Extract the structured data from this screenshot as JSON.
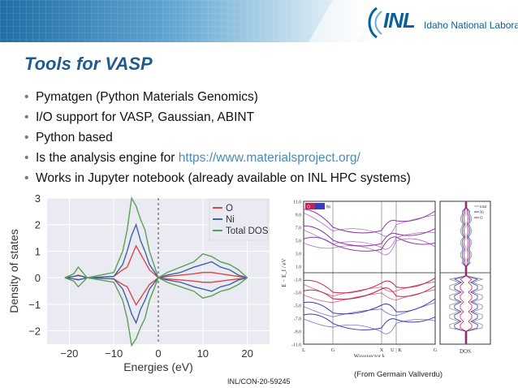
{
  "slide": {
    "title": "Tools for VASP",
    "bullets": [
      {
        "text": "Pymatgen (Python Materials Genomics)"
      },
      {
        "text": "I/O support for VASP, Gaussian, ABINT"
      },
      {
        "text": "Python based"
      },
      {
        "text": "Is the analysis engine for ",
        "link": "https://www.materialsproject.org/"
      },
      {
        "text": "Works in Jupyter notebook (already available on INL HPC systems)"
      }
    ],
    "caption": "(From Germain Vallverdu)",
    "footer": "INL/CON-20-59245",
    "logo": {
      "mark": "INL",
      "text": "Idaho National Laboratory"
    }
  },
  "colors": {
    "title": "#1f5b8f",
    "link": "#4a8ab8",
    "O": "#d94a48",
    "Ni": "#3a64a8",
    "Total": "#5aa055",
    "band_red": "#c8204f",
    "band_blue": "#3b3bbb",
    "band_purple": "#8d3aa8"
  },
  "chart_data": [
    {
      "type": "line",
      "xlabel": "Energies (eV)",
      "ylabel": "Density of states",
      "xlim": [
        -25,
        25
      ],
      "ylim": [
        -2.5,
        3
      ],
      "xticks": [
        "−20",
        "−10",
        "0",
        "10",
        "20"
      ],
      "yticks": [
        "3",
        "2",
        "1",
        "0",
        "−1",
        "−2"
      ],
      "legend_position": "top-right",
      "grid": true,
      "series": [
        {
          "name": "O",
          "x": [
            -21,
            -19,
            -18,
            -17,
            -16,
            -10,
            -8,
            -7,
            -6,
            -5,
            -4,
            -3,
            -2,
            0,
            2,
            5,
            8,
            10,
            12,
            14,
            16,
            18,
            20
          ],
          "values": [
            0,
            0.05,
            0.1,
            0.05,
            0,
            0.05,
            0.3,
            0.4,
            0.8,
            1.2,
            0.9,
            0.6,
            0.3,
            0,
            0.05,
            0.1,
            0.15,
            0.2,
            0.2,
            0.15,
            0.1,
            0.05,
            0
          ]
        },
        {
          "name": "Ni",
          "x": [
            -21,
            -19,
            -18,
            -17,
            -16,
            -10,
            -8,
            -7,
            -6,
            -5,
            -4,
            -3,
            -2,
            0,
            2,
            5,
            8,
            10,
            12,
            14,
            16,
            18,
            20
          ],
          "values": [
            0,
            0.05,
            0.08,
            0.05,
            0,
            0.05,
            0.5,
            1.0,
            1.6,
            2.0,
            1.4,
            1.0,
            0.5,
            0,
            0.1,
            0.2,
            0.4,
            0.5,
            0.6,
            0.4,
            0.3,
            0.1,
            0
          ]
        },
        {
          "name": "Total DOS",
          "x": [
            -21,
            -19,
            -18,
            -17,
            -16,
            -10,
            -8,
            -7,
            -6,
            -5,
            -4,
            -3,
            -2,
            0,
            2,
            5,
            8,
            10,
            12,
            14,
            16,
            18,
            20
          ],
          "values": [
            0,
            0.15,
            0.4,
            0.2,
            0,
            0.2,
            1.0,
            1.8,
            3.0,
            2.7,
            2.2,
            1.8,
            1.0,
            0,
            0.2,
            0.4,
            0.6,
            0.9,
            0.8,
            0.6,
            0.5,
            0.3,
            0
          ]
        }
      ]
    },
    {
      "type": "line",
      "xlabel": "Wavevector k",
      "ylabel": "E − E_f / eV",
      "ylim": [
        -11,
        11
      ],
      "xticks": [
        "L",
        "G",
        "X",
        "U | K",
        "G"
      ],
      "yticks": [
        "11.0",
        "9.0",
        "7.0",
        "5.0",
        "3.0",
        "1.0",
        "-1.0",
        "-3.0",
        "-5.0",
        "-7.0",
        "-9.0",
        "-11.0"
      ],
      "colorbar_ticks": [
        "O",
        "Ni"
      ],
      "series": [
        {
          "name": "",
          "values": [
            9.8,
            7.0,
            6.5,
            8.0,
            9.5
          ]
        },
        {
          "name": "",
          "values": [
            7.2,
            5.0,
            4.5,
            6.0,
            6.8
          ]
        },
        {
          "name": "",
          "values": [
            5.2,
            4.4,
            3.6,
            5.5,
            4.6
          ]
        },
        {
          "name": "",
          "values": [
            -1.2,
            -3.0,
            -1.6,
            -2.2,
            -0.8
          ]
        },
        {
          "name": "",
          "values": [
            -2.8,
            -4.0,
            -2.5,
            -3.6,
            -2.0
          ]
        },
        {
          "name": "",
          "values": [
            -4.6,
            -6.2,
            -5.0,
            -6.0,
            -4.0
          ]
        },
        {
          "name": "",
          "values": [
            -6.5,
            -7.8,
            -8.5,
            -7.2,
            -6.8
          ]
        }
      ]
    },
    {
      "type": "line",
      "xlabel": "DOS",
      "legend": [
        "total",
        "Ni",
        "O"
      ]
    }
  ]
}
